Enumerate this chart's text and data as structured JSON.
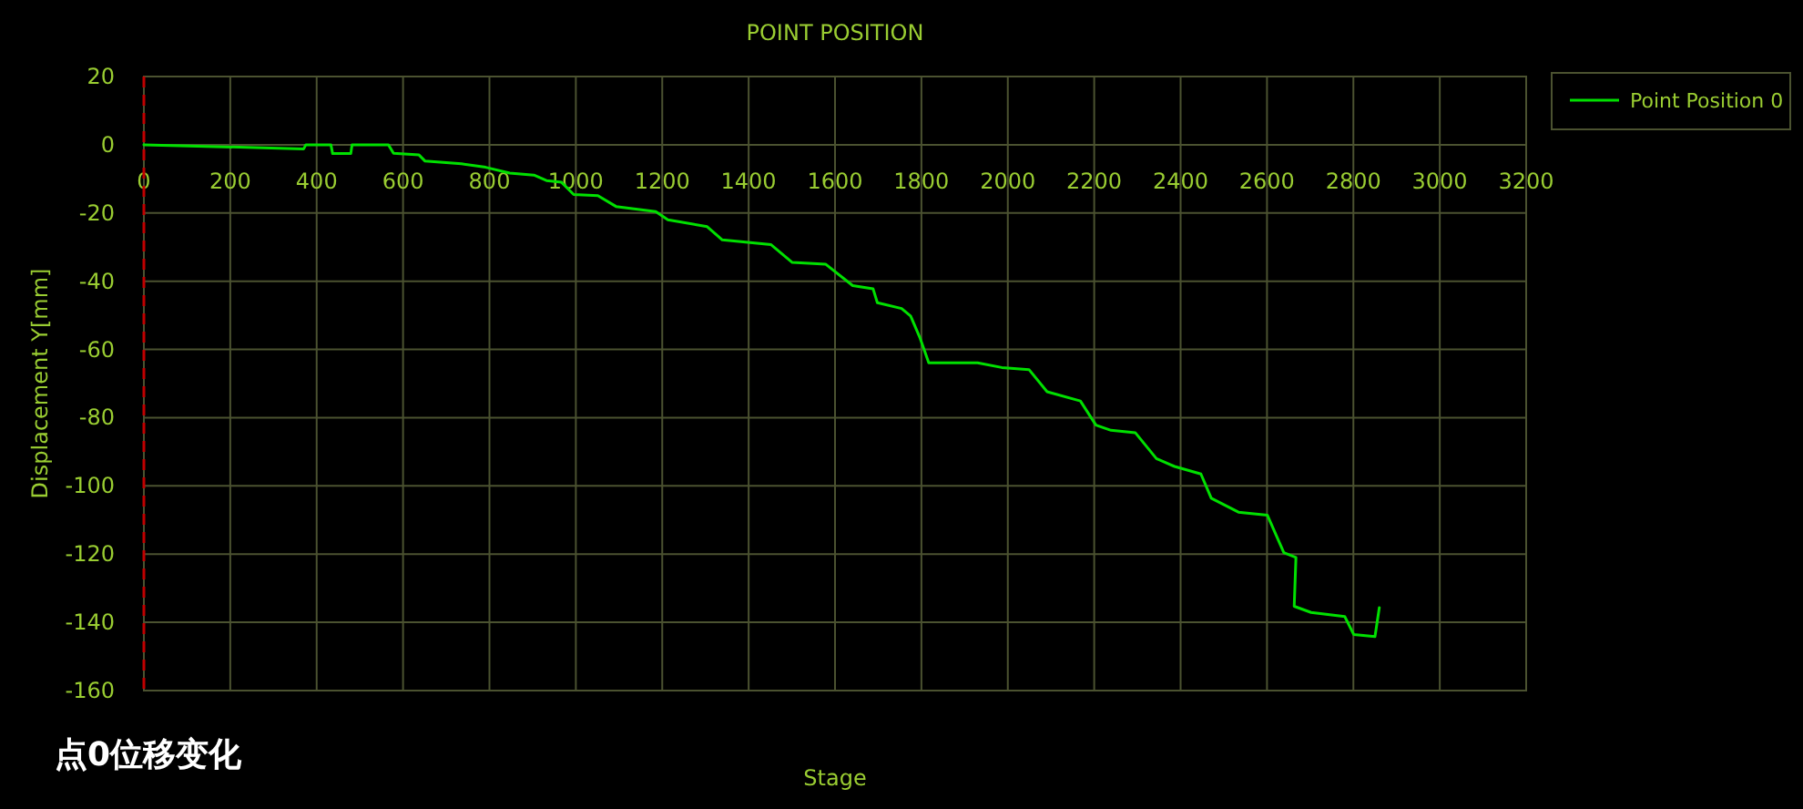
{
  "chart_data": {
    "type": "line",
    "title": "POINT POSITION",
    "xlabel": "Stage",
    "ylabel": "Displacement Y[mm]",
    "annotations": [
      "点0位移变化"
    ],
    "xlim": [
      0,
      3200
    ],
    "ylim": [
      -160,
      20
    ],
    "xticks": [
      0,
      200,
      400,
      600,
      800,
      1000,
      1200,
      1400,
      1600,
      1800,
      2000,
      2200,
      2400,
      2600,
      2800,
      3000,
      3200
    ],
    "yticks": [
      -160,
      -140,
      -120,
      -100,
      -80,
      -60,
      -40,
      -20,
      0,
      20
    ],
    "grid": true,
    "legend": "top right",
    "ref_lines": [
      {
        "axis": "x",
        "value": 0,
        "color": "#c00000",
        "line_style": "dashed"
      }
    ],
    "series": [
      {
        "name": "Point Position 0",
        "color": "#00e000",
        "x": [
          0,
          370,
          375,
          433,
          437,
          479,
          482,
          566,
          578,
          637,
          651,
          735,
          791,
          847,
          903,
          932,
          967,
          995,
          1051,
          1093,
          1185,
          1213,
          1304,
          1339,
          1452,
          1501,
          1578,
          1641,
          1688,
          1698,
          1754,
          1775,
          1796,
          1817,
          1930,
          1986,
          2049,
          2091,
          2168,
          2204,
          2239,
          2295,
          2344,
          2386,
          2447,
          2471,
          2534,
          2601,
          2639,
          2667,
          2663,
          2702,
          2780,
          2801,
          2850,
          2860
        ],
        "values": [
          0,
          -1.2,
          0,
          0,
          -2.6,
          -2.6,
          0,
          0,
          -2.5,
          -3,
          -4.8,
          -5.6,
          -6.6,
          -8.3,
          -8.9,
          -10.5,
          -11,
          -14.6,
          -14.9,
          -18.1,
          -19.6,
          -22,
          -24,
          -27.9,
          -29.3,
          -34.5,
          -35,
          -41.3,
          -42.2,
          -46.3,
          -48,
          -50.2,
          -56.4,
          -63.9,
          -63.9,
          -65.3,
          -65.9,
          -72.4,
          -75.1,
          -82.2,
          -83.7,
          -84.4,
          -92,
          -94.3,
          -96.5,
          -103.6,
          -107.7,
          -108.6,
          -119.6,
          -121,
          -135.3,
          -137.1,
          -138.3,
          -143.6,
          -144.2,
          -135.7
        ]
      }
    ]
  }
}
